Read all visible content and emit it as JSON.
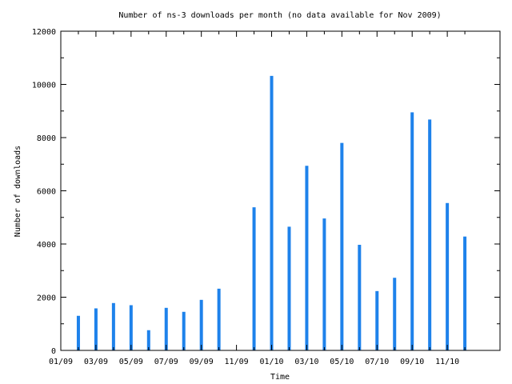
{
  "chart_data": {
    "type": "bar",
    "title": "Number of ns-3 downloads per month (no data available for Nov 2009)",
    "xlabel": "Time",
    "ylabel": "Number of downloads",
    "ylim": [
      0,
      12000
    ],
    "yticks": [
      0,
      2000,
      4000,
      6000,
      8000,
      10000,
      12000
    ],
    "xticks": [
      "01/09",
      "03/09",
      "05/09",
      "07/09",
      "09/09",
      "11/09",
      "01/10",
      "03/10",
      "05/10",
      "07/10",
      "09/10",
      "11/10"
    ],
    "xlim": [
      "01/09",
      "02/11"
    ],
    "grid": false,
    "legend": "none",
    "bar_color": "#1e82eb",
    "months": [
      "02/09",
      "03/09",
      "04/09",
      "05/09",
      "06/09",
      "07/09",
      "08/09",
      "09/09",
      "10/09",
      "11/09",
      "12/09",
      "01/10",
      "02/10",
      "03/10",
      "04/10",
      "05/10",
      "06/10",
      "07/10",
      "08/10",
      "09/10",
      "10/10",
      "11/10",
      "12/10"
    ],
    "values": [
      1300,
      1580,
      1780,
      1700,
      760,
      1600,
      1450,
      1900,
      2320,
      null,
      5380,
      10320,
      4650,
      6940,
      4960,
      7800,
      3970,
      2230,
      2730,
      8950,
      8680,
      5540,
      4280
    ]
  }
}
